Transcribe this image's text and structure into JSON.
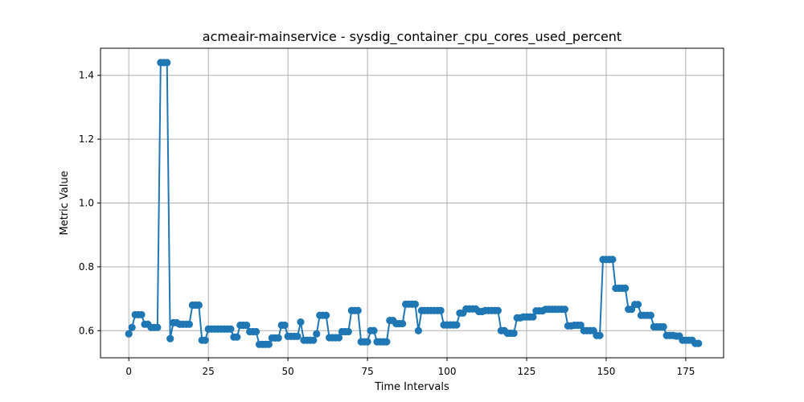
{
  "chart_data": {
    "type": "line",
    "title": "acmeair-mainservice - sysdig_container_cpu_cores_used_percent",
    "xlabel": "Time Intervals",
    "ylabel": "Metric Value",
    "xlim": [
      -8.9,
      186.9
    ],
    "ylim": [
      0.515,
      1.485
    ],
    "x_ticks": [
      0,
      25,
      50,
      75,
      100,
      125,
      150,
      175
    ],
    "x_tick_labels": [
      "0",
      "25",
      "50",
      "75",
      "100",
      "125",
      "150",
      "175"
    ],
    "y_ticks": [
      0.6,
      0.8,
      1.0,
      1.2,
      1.4
    ],
    "y_tick_labels": [
      "0.6",
      "0.8",
      "1.0",
      "1.2",
      "1.4"
    ],
    "grid": true,
    "legend": "none",
    "series": [
      {
        "color": "#1f77b4",
        "marker": "circle",
        "x_start": 0,
        "x_step": 1,
        "values": [
          0.59,
          0.61,
          0.65,
          0.65,
          0.65,
          0.62,
          0.62,
          0.61,
          0.61,
          0.61,
          1.44,
          1.44,
          1.44,
          0.575,
          0.625,
          0.625,
          0.62,
          0.62,
          0.62,
          0.62,
          0.68,
          0.68,
          0.68,
          0.57,
          0.57,
          0.605,
          0.605,
          0.605,
          0.605,
          0.605,
          0.605,
          0.605,
          0.605,
          0.58,
          0.58,
          0.617,
          0.617,
          0.617,
          0.597,
          0.597,
          0.597,
          0.557,
          0.557,
          0.557,
          0.557,
          0.577,
          0.577,
          0.577,
          0.617,
          0.617,
          0.582,
          0.582,
          0.582,
          0.582,
          0.627,
          0.57,
          0.57,
          0.57,
          0.57,
          0.59,
          0.648,
          0.648,
          0.648,
          0.578,
          0.578,
          0.578,
          0.578,
          0.597,
          0.597,
          0.597,
          0.663,
          0.663,
          0.663,
          0.565,
          0.565,
          0.565,
          0.6,
          0.6,
          0.565,
          0.565,
          0.565,
          0.565,
          0.632,
          0.632,
          0.622,
          0.622,
          0.622,
          0.683,
          0.683,
          0.683,
          0.683,
          0.6,
          0.663,
          0.663,
          0.663,
          0.663,
          0.663,
          0.663,
          0.663,
          0.618,
          0.618,
          0.618,
          0.618,
          0.618,
          0.655,
          0.655,
          0.668,
          0.668,
          0.668,
          0.668,
          0.66,
          0.66,
          0.663,
          0.663,
          0.663,
          0.663,
          0.663,
          0.6,
          0.6,
          0.592,
          0.592,
          0.592,
          0.64,
          0.64,
          0.643,
          0.643,
          0.643,
          0.643,
          0.662,
          0.662,
          0.662,
          0.667,
          0.667,
          0.667,
          0.667,
          0.667,
          0.667,
          0.667,
          0.615,
          0.615,
          0.617,
          0.617,
          0.617,
          0.6,
          0.6,
          0.6,
          0.6,
          0.585,
          0.585,
          0.823,
          0.823,
          0.823,
          0.823,
          0.733,
          0.733,
          0.733,
          0.733,
          0.667,
          0.667,
          0.682,
          0.682,
          0.648,
          0.648,
          0.648,
          0.648,
          0.612,
          0.612,
          0.612,
          0.612,
          0.585,
          0.585,
          0.585,
          0.583,
          0.583,
          0.57,
          0.57,
          0.57,
          0.57,
          0.56,
          0.56
        ]
      }
    ]
  }
}
